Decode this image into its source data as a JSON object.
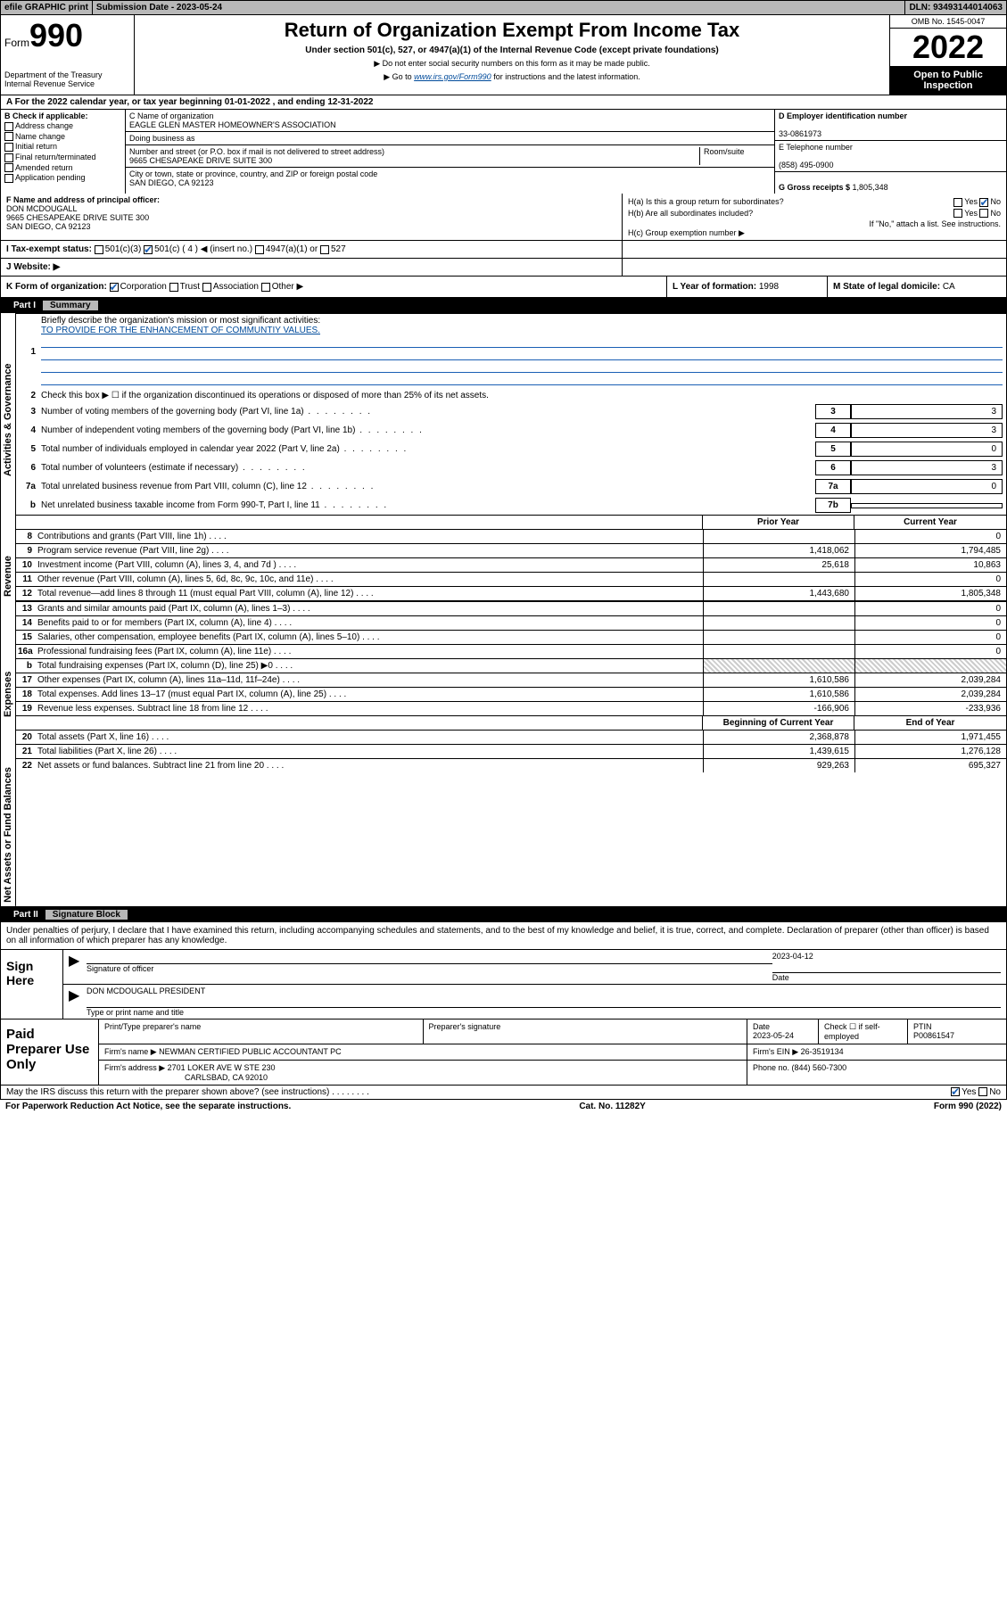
{
  "top": {
    "efile_label": "efile GRAPHIC print",
    "sub_date_label": "Submission Date - ",
    "sub_date": "2023-05-24",
    "dln_label": "DLN: ",
    "dln": "93493144014063"
  },
  "header": {
    "form_label": "Form",
    "form_num": "990",
    "dept": "Department of the Treasury\nInternal Revenue Service",
    "title": "Return of Organization Exempt From Income Tax",
    "sub": "Under section 501(c), 527, or 4947(a)(1) of the Internal Revenue Code (except private foundations)",
    "note1": "▶ Do not enter social security numbers on this form as it may be made public.",
    "note2_pre": "▶ Go to ",
    "note2_link": "www.irs.gov/Form990",
    "note2_post": " for instructions and the latest information.",
    "omb": "OMB No. 1545-0047",
    "year": "2022",
    "open_pub": "Open to Public Inspection"
  },
  "sectionA": {
    "text": "A For the 2022 calendar year, or tax year beginning 01-01-2022   , and ending 12-31-2022"
  },
  "colB": {
    "label": "B Check if applicable:",
    "items": [
      "Address change",
      "Name change",
      "Initial return",
      "Final return/terminated",
      "Amended return",
      "Application pending"
    ]
  },
  "colC": {
    "name_label": "C Name of organization",
    "name": "EAGLE GLEN MASTER HOMEOWNER'S ASSOCIATION",
    "dba_label": "Doing business as",
    "addr_label": "Number and street (or P.O. box if mail is not delivered to street address)",
    "room_label": "Room/suite",
    "addr": "9665 CHESAPEAKE DRIVE SUITE 300",
    "city_label": "City or town, state or province, country, and ZIP or foreign postal code",
    "city": "SAN DIEGO, CA  92123"
  },
  "colD": {
    "d_label": "D Employer identification number",
    "ein": "33-0861973",
    "e_label": "E Telephone number",
    "phone": "(858) 495-0900",
    "g_label": "G Gross receipts $ ",
    "g_val": "1,805,348"
  },
  "rowF": {
    "label": "F Name and address of principal officer:",
    "name": "DON MCDOUGALL",
    "addr1": "9665 CHESAPEAKE DRIVE SUITE 300",
    "addr2": "SAN DIEGO, CA  92123"
  },
  "rowH": {
    "ha": "H(a)  Is this a group return for subordinates?",
    "hb": "H(b)  Are all subordinates included?",
    "hb_note": "If \"No,\" attach a list. See instructions.",
    "hc": "H(c)  Group exemption number ▶",
    "yes": "Yes",
    "no": "No"
  },
  "rowI": {
    "label": "I   Tax-exempt status:",
    "opts": [
      "501(c)(3)",
      "501(c) ( 4 ) ◀ (insert no.)",
      "4947(a)(1) or",
      "527"
    ]
  },
  "rowJ": {
    "label": "J   Website: ▶"
  },
  "rowK": {
    "label": "K Form of organization:",
    "opts": [
      "Corporation",
      "Trust",
      "Association",
      "Other ▶"
    ],
    "l_label": "L Year of formation: ",
    "l_val": "1998",
    "m_label": "M State of legal domicile: ",
    "m_val": "CA"
  },
  "part1": {
    "label": "Part I",
    "title": "Summary"
  },
  "summary": {
    "groups": [
      {
        "label": "Activities & Governance",
        "rows": [
          {
            "n": "1",
            "t": "Briefly describe the organization's mission or most significant activities:",
            "mission": "TO PROVIDE FOR THE ENHANCEMENT OF COMMUNTIY VALUES.",
            "type": "mission"
          },
          {
            "n": "2",
            "t": "Check this box ▶ ☐ if the organization discontinued its operations or disposed of more than 25% of its net assets.",
            "type": "plain"
          },
          {
            "n": "3",
            "t": "Number of voting members of the governing body (Part VI, line 1a)",
            "box": "3",
            "v": "3",
            "type": "boxval"
          },
          {
            "n": "4",
            "t": "Number of independent voting members of the governing body (Part VI, line 1b)",
            "box": "4",
            "v": "3",
            "type": "boxval"
          },
          {
            "n": "5",
            "t": "Total number of individuals employed in calendar year 2022 (Part V, line 2a)",
            "box": "5",
            "v": "0",
            "type": "boxval"
          },
          {
            "n": "6",
            "t": "Total number of volunteers (estimate if necessary)",
            "box": "6",
            "v": "3",
            "type": "boxval"
          },
          {
            "n": "7a",
            "t": "Total unrelated business revenue from Part VIII, column (C), line 12",
            "box": "7a",
            "v": "0",
            "type": "boxval"
          },
          {
            "n": "b",
            "t": "Net unrelated business taxable income from Form 990-T, Part I, line 11",
            "box": "7b",
            "v": "",
            "type": "boxval"
          }
        ]
      },
      {
        "label": "Revenue",
        "hdr": [
          "Prior Year",
          "Current Year"
        ],
        "rows": [
          {
            "n": "8",
            "t": "Contributions and grants (Part VIII, line 1h)",
            "c1": "",
            "c2": "0"
          },
          {
            "n": "9",
            "t": "Program service revenue (Part VIII, line 2g)",
            "c1": "1,418,062",
            "c2": "1,794,485"
          },
          {
            "n": "10",
            "t": "Investment income (Part VIII, column (A), lines 3, 4, and 7d )",
            "c1": "25,618",
            "c2": "10,863"
          },
          {
            "n": "11",
            "t": "Other revenue (Part VIII, column (A), lines 5, 6d, 8c, 9c, 10c, and 11e)",
            "c1": "",
            "c2": "0"
          },
          {
            "n": "12",
            "t": "Total revenue—add lines 8 through 11 (must equal Part VIII, column (A), line 12)",
            "c1": "1,443,680",
            "c2": "1,805,348"
          }
        ]
      },
      {
        "label": "Expenses",
        "rows": [
          {
            "n": "13",
            "t": "Grants and similar amounts paid (Part IX, column (A), lines 1–3)",
            "c1": "",
            "c2": "0"
          },
          {
            "n": "14",
            "t": "Benefits paid to or for members (Part IX, column (A), line 4)",
            "c1": "",
            "c2": "0"
          },
          {
            "n": "15",
            "t": "Salaries, other compensation, employee benefits (Part IX, column (A), lines 5–10)",
            "c1": "",
            "c2": "0"
          },
          {
            "n": "16a",
            "t": "Professional fundraising fees (Part IX, column (A), line 11e)",
            "c1": "",
            "c2": "0"
          },
          {
            "n": "b",
            "t": "Total fundraising expenses (Part IX, column (D), line 25) ▶0",
            "c1": null,
            "c2": null,
            "hatch": true
          },
          {
            "n": "17",
            "t": "Other expenses (Part IX, column (A), lines 11a–11d, 11f–24e)",
            "c1": "1,610,586",
            "c2": "2,039,284"
          },
          {
            "n": "18",
            "t": "Total expenses. Add lines 13–17 (must equal Part IX, column (A), line 25)",
            "c1": "1,610,586",
            "c2": "2,039,284"
          },
          {
            "n": "19",
            "t": "Revenue less expenses. Subtract line 18 from line 12",
            "c1": "-166,906",
            "c2": "-233,936"
          }
        ]
      },
      {
        "label": "Net Assets or Fund Balances",
        "hdr": [
          "Beginning of Current Year",
          "End of Year"
        ],
        "rows": [
          {
            "n": "20",
            "t": "Total assets (Part X, line 16)",
            "c1": "2,368,878",
            "c2": "1,971,455"
          },
          {
            "n": "21",
            "t": "Total liabilities (Part X, line 26)",
            "c1": "1,439,615",
            "c2": "1,276,128"
          },
          {
            "n": "22",
            "t": "Net assets or fund balances. Subtract line 21 from line 20",
            "c1": "929,263",
            "c2": "695,327"
          }
        ]
      }
    ]
  },
  "part2": {
    "label": "Part II",
    "title": "Signature Block"
  },
  "sig": {
    "decl": "Under penalties of perjury, I declare that I have examined this return, including accompanying schedules and statements, and to the best of my knowledge and belief, it is true, correct, and complete. Declaration of preparer (other than officer) is based on all information of which preparer has any knowledge.",
    "sign_here": "Sign Here",
    "sig_officer": "Signature of officer",
    "date_label": "Date",
    "date": "2023-04-12",
    "officer_name": "DON MCDOUGALL  PRESIDENT",
    "name_label": "Type or print name and title"
  },
  "paid": {
    "label": "Paid Preparer Use Only",
    "h": [
      "Print/Type preparer's name",
      "Preparer's signature",
      "Date",
      "",
      "PTIN"
    ],
    "date": "2023-05-24",
    "check_label": "Check ☐ if self-employed",
    "ptin": "P00861547",
    "firm_name_label": "Firm's name    ▶ ",
    "firm_name": "NEWMAN CERTIFIED PUBLIC ACCOUNTANT PC",
    "firm_ein_label": "Firm's EIN ▶ ",
    "firm_ein": "26-3519134",
    "firm_addr_label": "Firm's address ▶ ",
    "firm_addr": "2701 LOKER AVE W STE 230",
    "firm_city": "CARLSBAD, CA  92010",
    "phone_label": "Phone no. ",
    "phone": "(844) 560-7300"
  },
  "footer": {
    "q": "May the IRS discuss this return with the preparer shown above? (see instructions)",
    "yes": "Yes",
    "no": "No",
    "pra": "For Paperwork Reduction Act Notice, see the separate instructions.",
    "cat": "Cat. No. 11282Y",
    "form": "Form 990 (2022)"
  },
  "colors": {
    "gray": "#b8b8b8",
    "black": "#000000",
    "link": "#004b9b",
    "check": "#1a5fb4"
  }
}
